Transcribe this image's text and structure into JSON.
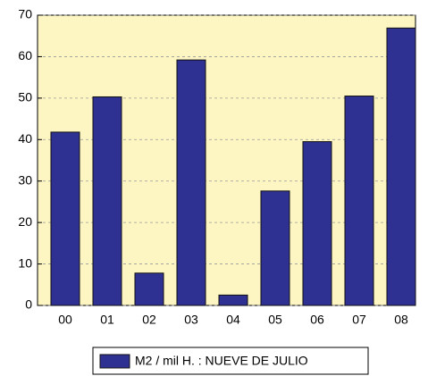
{
  "chart_data": {
    "type": "bar",
    "categories": [
      "00",
      "01",
      "02",
      "03",
      "04",
      "05",
      "06",
      "07",
      "08"
    ],
    "series": [
      {
        "name": "M2 / mil H. : NUEVE DE JULIO",
        "color": "#2e3192",
        "values": [
          41.8,
          50.3,
          7.8,
          59.2,
          2.5,
          27.6,
          39.5,
          50.5,
          66.9
        ]
      }
    ],
    "ylim": [
      0,
      70
    ],
    "yticks": [
      0,
      10,
      20,
      30,
      40,
      50,
      60,
      70
    ],
    "grid": true
  }
}
